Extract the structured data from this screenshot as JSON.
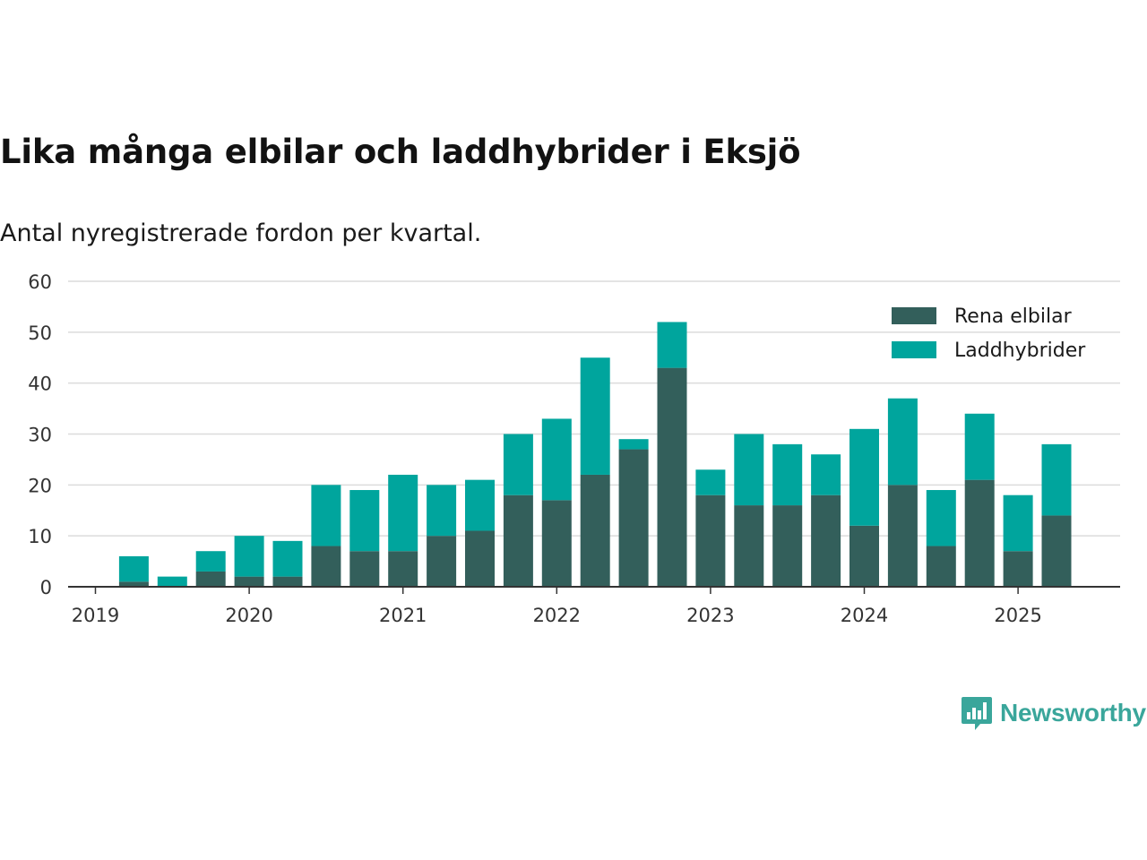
{
  "title": "Lika många elbilar och laddhybrider i Eksjö",
  "subtitle": "Antal nyregistrerade fordon per kvartal.",
  "brand": {
    "name": "Newsworthy",
    "icon": "bar-chart-speech-bubble-icon",
    "color": "#3aa69b"
  },
  "chart_data": {
    "type": "bar",
    "stacked": true,
    "x_tick_labels": [
      "2019",
      "2020",
      "2021",
      "2022",
      "2023",
      "2024",
      "2025"
    ],
    "categories": [
      "2019 Q1",
      "2019 Q2",
      "2019 Q3",
      "2019 Q4",
      "2020 Q1",
      "2020 Q2",
      "2020 Q3",
      "2020 Q4",
      "2021 Q1",
      "2021 Q2",
      "2021 Q3",
      "2021 Q4",
      "2022 Q1",
      "2022 Q2",
      "2022 Q3",
      "2022 Q4",
      "2023 Q1",
      "2023 Q2",
      "2023 Q3",
      "2023 Q4",
      "2024 Q1",
      "2024 Q2",
      "2024 Q3",
      "2024 Q4",
      "2025 Q1",
      "2025 Q2"
    ],
    "series": [
      {
        "name": "Rena elbilar",
        "color": "#335f5b",
        "values": [
          0,
          1,
          0,
          3,
          2,
          2,
          8,
          7,
          7,
          10,
          11,
          18,
          17,
          22,
          27,
          43,
          18,
          16,
          16,
          18,
          12,
          20,
          8,
          21,
          7,
          14
        ]
      },
      {
        "name": "Laddhybrider",
        "color": "#00a59d",
        "values": [
          0,
          5,
          2,
          4,
          8,
          7,
          12,
          12,
          15,
          10,
          10,
          12,
          16,
          23,
          2,
          9,
          5,
          14,
          12,
          8,
          19,
          17,
          11,
          13,
          11,
          14
        ]
      }
    ],
    "ylim": [
      0,
      60
    ],
    "yticks": [
      0,
      10,
      20,
      30,
      40,
      50,
      60
    ],
    "xlabel": "",
    "ylabel": "",
    "grid": true,
    "legend_position": "top-right"
  }
}
